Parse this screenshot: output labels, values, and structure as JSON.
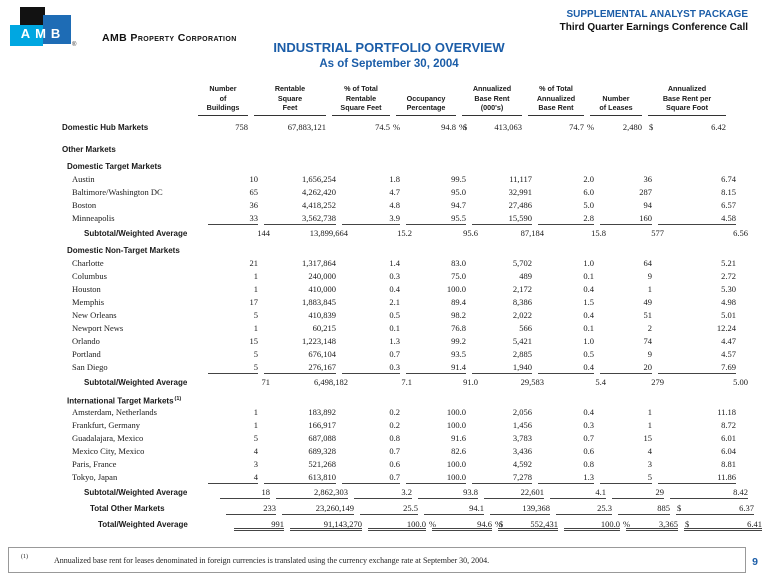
{
  "brand": {
    "logo_letters": "AMB",
    "registered_mark": "®",
    "company_name": "AMB Property Corporation"
  },
  "header": {
    "line1": "SUPPLEMENTAL ANALYST PACKAGE",
    "line2": "Third Quarter Earnings Conference Call"
  },
  "title": {
    "line1": "INDUSTRIAL PORTFOLIO OVERVIEW",
    "line2": "As of September 30, 2004"
  },
  "colors": {
    "accent_blue": "#1b5da8",
    "logo_cyan": "#00a7e1",
    "logo_blue": "#1e6cb5",
    "logo_black": "#121212"
  },
  "table": {
    "columns": [
      {
        "id": "buildings",
        "lines": [
          "Number",
          "of",
          "Buildings"
        ]
      },
      {
        "id": "rentable-sf",
        "lines": [
          "Rentable",
          "Square",
          "Feet"
        ]
      },
      {
        "id": "pct-total-sf",
        "lines": [
          "% of Total",
          "Rentable",
          "Square Feet"
        ]
      },
      {
        "id": "occupancy",
        "lines": [
          "Occupancy",
          "Percentage"
        ]
      },
      {
        "id": "annualized-base-rent",
        "lines": [
          "Annualized",
          "Base Rent",
          "(000's)"
        ]
      },
      {
        "id": "pct-total-abr",
        "lines": [
          "% of Total",
          "Annualized",
          "Base Rent"
        ]
      },
      {
        "id": "leases",
        "lines": [
          "Number",
          "of Leases"
        ]
      },
      {
        "id": "abr-per-sf",
        "lines": [
          "Annualized",
          "Base Rent per",
          "Square Foot"
        ]
      }
    ],
    "rows": [
      {
        "type": "hub",
        "label": "Domestic Hub Markets",
        "indent": 0,
        "cells": [
          "758",
          "67,883,121",
          "74.5",
          "94.8",
          "413,063",
          "74.7",
          "2,480",
          "6.42"
        ],
        "dollars": [
          4,
          7
        ],
        "pcts": [
          2,
          3,
          5
        ]
      },
      {
        "type": "section",
        "label": "Other Markets",
        "indent": 0
      },
      {
        "type": "subsection",
        "label": "Domestic Target Markets",
        "indent": 1
      },
      {
        "type": "city",
        "label": "Austin",
        "indent": 2,
        "cells": [
          "10",
          "1,656,254",
          "1.8",
          "99.5",
          "11,117",
          "2.0",
          "36",
          "6.74"
        ]
      },
      {
        "type": "city",
        "label": "Baltimore/Washington DC",
        "indent": 2,
        "cells": [
          "65",
          "4,262,420",
          "4.7",
          "95.0",
          "32,991",
          "6.0",
          "287",
          "8.15"
        ]
      },
      {
        "type": "city",
        "label": "Boston",
        "indent": 2,
        "cells": [
          "36",
          "4,418,252",
          "4.8",
          "94.7",
          "27,486",
          "5.0",
          "94",
          "6.57"
        ]
      },
      {
        "type": "city",
        "label": "Minneapolis",
        "indent": 2,
        "cells": [
          "33",
          "3,562,738",
          "3.9",
          "95.5",
          "15,590",
          "2.8",
          "160",
          "4.58"
        ],
        "ul": "single"
      },
      {
        "type": "subtotal",
        "label": "Subtotal/Weighted Average",
        "indent": 3,
        "cells": [
          "144",
          "13,899,664",
          "15.2",
          "95.6",
          "87,184",
          "15.8",
          "577",
          "6.56"
        ]
      },
      {
        "type": "subsection",
        "label": "Domestic Non-Target Markets",
        "indent": 1
      },
      {
        "type": "city",
        "label": "Charlotte",
        "indent": 2,
        "cells": [
          "21",
          "1,317,864",
          "1.4",
          "83.0",
          "5,702",
          "1.0",
          "64",
          "5.21"
        ]
      },
      {
        "type": "city",
        "label": "Columbus",
        "indent": 2,
        "cells": [
          "1",
          "240,000",
          "0.3",
          "75.0",
          "489",
          "0.1",
          "9",
          "2.72"
        ]
      },
      {
        "type": "city",
        "label": "Houston",
        "indent": 2,
        "cells": [
          "1",
          "410,000",
          "0.4",
          "100.0",
          "2,172",
          "0.4",
          "1",
          "5.30"
        ]
      },
      {
        "type": "city",
        "label": "Memphis",
        "indent": 2,
        "cells": [
          "17",
          "1,883,845",
          "2.1",
          "89.4",
          "8,386",
          "1.5",
          "49",
          "4.98"
        ]
      },
      {
        "type": "city",
        "label": "New Orleans",
        "indent": 2,
        "cells": [
          "5",
          "410,839",
          "0.5",
          "98.2",
          "2,022",
          "0.4",
          "51",
          "5.01"
        ]
      },
      {
        "type": "city",
        "label": "Newport News",
        "indent": 2,
        "cells": [
          "1",
          "60,215",
          "0.1",
          "76.8",
          "566",
          "0.1",
          "2",
          "12.24"
        ]
      },
      {
        "type": "city",
        "label": "Orlando",
        "indent": 2,
        "cells": [
          "15",
          "1,223,148",
          "1.3",
          "99.2",
          "5,421",
          "1.0",
          "74",
          "4.47"
        ]
      },
      {
        "type": "city",
        "label": "Portland",
        "indent": 2,
        "cells": [
          "5",
          "676,104",
          "0.7",
          "93.5",
          "2,885",
          "0.5",
          "9",
          "4.57"
        ]
      },
      {
        "type": "city",
        "label": "San Diego",
        "indent": 2,
        "cells": [
          "5",
          "276,167",
          "0.3",
          "91.4",
          "1,940",
          "0.4",
          "20",
          "7.69"
        ],
        "ul": "single"
      },
      {
        "type": "subtotal",
        "label": "Subtotal/Weighted Average",
        "indent": 3,
        "cells": [
          "71",
          "6,498,182",
          "7.1",
          "91.0",
          "29,583",
          "5.4",
          "279",
          "5.00"
        ]
      },
      {
        "type": "subsection",
        "label": "International Target Markets",
        "sup": "(1)",
        "indent": 1
      },
      {
        "type": "city",
        "label": "Amsterdam, Netherlands",
        "indent": 2,
        "cells": [
          "1",
          "183,892",
          "0.2",
          "100.0",
          "2,056",
          "0.4",
          "1",
          "11.18"
        ]
      },
      {
        "type": "city",
        "label": "Frankfurt, Germany",
        "indent": 2,
        "cells": [
          "1",
          "166,917",
          "0.2",
          "100.0",
          "1,456",
          "0.3",
          "1",
          "8.72"
        ]
      },
      {
        "type": "city",
        "label": "Guadalajara, Mexico",
        "indent": 2,
        "cells": [
          "5",
          "687,088",
          "0.8",
          "91.6",
          "3,783",
          "0.7",
          "15",
          "6.01"
        ]
      },
      {
        "type": "city",
        "label": "Mexico City, Mexico",
        "indent": 2,
        "cells": [
          "4",
          "689,328",
          "0.7",
          "82.6",
          "3,436",
          "0.6",
          "4",
          "6.04"
        ]
      },
      {
        "type": "city",
        "label": "Paris, France",
        "indent": 2,
        "cells": [
          "3",
          "521,268",
          "0.6",
          "100.0",
          "4,592",
          "0.8",
          "3",
          "8.81"
        ]
      },
      {
        "type": "city",
        "label": "Tokyo, Japan",
        "indent": 2,
        "cells": [
          "4",
          "613,810",
          "0.7",
          "100.0",
          "7,278",
          "1.3",
          "5",
          "11.86"
        ],
        "ul": "single"
      },
      {
        "type": "subtotal",
        "label": "Subtotal/Weighted Average",
        "indent": 3,
        "cells": [
          "18",
          "2,862,303",
          "3.2",
          "93.8",
          "22,601",
          "4.1",
          "29",
          "8.42"
        ],
        "ul": "single"
      },
      {
        "type": "total",
        "label": "Total Other Markets",
        "indent": 4,
        "cells": [
          "233",
          "23,260,149",
          "25.5",
          "94.1",
          "139,368",
          "25.3",
          "885",
          "6.37"
        ],
        "dollars": [
          7
        ],
        "ul": "single"
      },
      {
        "type": "grandtotal",
        "label": "Total/Weighted Average",
        "indent": 5,
        "cells": [
          "991",
          "91,143,270",
          "100.0",
          "94.6",
          "552,431",
          "100.0",
          "3,365",
          "6.41"
        ],
        "dollars": [
          4,
          7
        ],
        "pcts": [
          2,
          3,
          5
        ],
        "ul": "double"
      }
    ]
  },
  "footnote": {
    "marker": "(1)",
    "text": "Annualized base rent for leases denominated in foreign currencies is translated using the currency exchange rate at September 30, 2004."
  },
  "page_number": "9"
}
